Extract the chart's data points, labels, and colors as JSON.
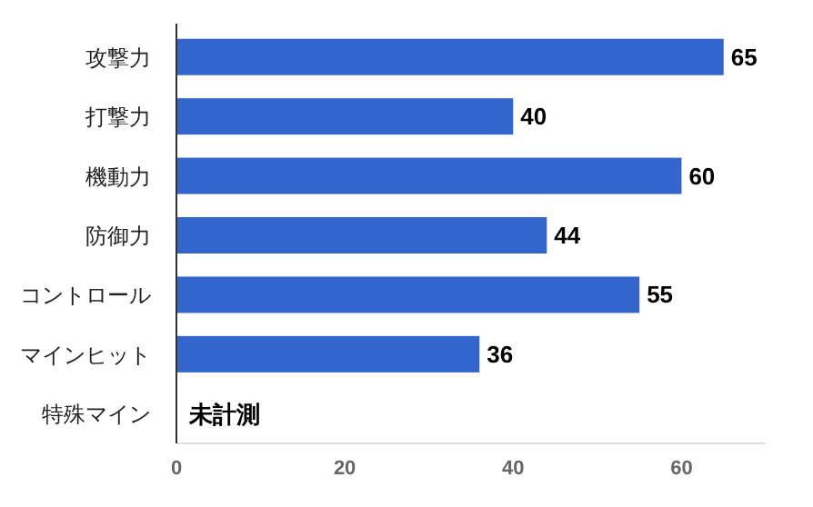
{
  "chart_data": {
    "type": "bar",
    "orientation": "horizontal",
    "categories": [
      "攻撃力",
      "打撃力",
      "機動力",
      "防御力",
      "コントロール",
      "マインヒット",
      "特殊マイン"
    ],
    "values": [
      65,
      40,
      60,
      44,
      55,
      36,
      null
    ],
    "color": "#3366cc",
    "xlim": [
      0,
      70
    ],
    "xticks": [
      0,
      20,
      40,
      60
    ],
    "data_labels": true,
    "annotations": [
      "未計測"
    ]
  }
}
